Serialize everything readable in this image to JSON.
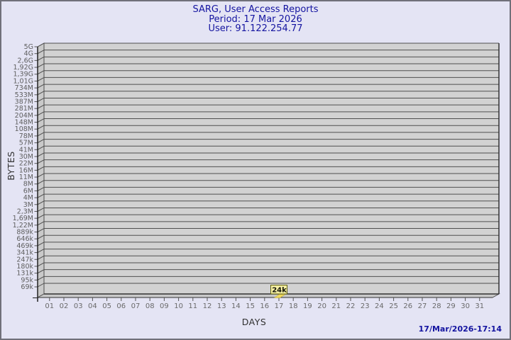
{
  "header": {
    "title": "SARG, User Access Reports",
    "period": "Period: 17 Mar 2026",
    "user": "User: 91.122.254.77"
  },
  "footer": {
    "timestamp": "17/Mar/2026-17:14"
  },
  "colors": {
    "page_background": "#e4e4f4",
    "page_border": "#70707a",
    "title_text": "#1414a0",
    "plot_background": "#d2d2d2",
    "wall_fill": "#c9c9c9",
    "gridline": "#4f4f4f",
    "edge": "#323232",
    "tick_label": "#5e5e5e",
    "bar_fill": "#eed95e",
    "bar_edge": "#b0992f",
    "tooltip_fill": "#f5efa2",
    "tooltip_border": "#5f5f10"
  },
  "chart_data": {
    "type": "bar",
    "title": "SARG, User Access Reports",
    "subtitle": "Period: 17 Mar 2026",
    "user_line": "User: 91.122.254.77",
    "xlabel": "DAYS",
    "ylabel": "BYTES",
    "grid": "horizontal",
    "legend": "none",
    "y_axis_style": "logarithmic-like SARG bytes scale, top 5G, bottom 69k",
    "y_tick_labels": [
      "5G",
      "4G",
      "2,6G",
      "1,92G",
      "1,39G",
      "1,01G",
      "734M",
      "533M",
      "387M",
      "281M",
      "204M",
      "148M",
      "108M",
      "78M",
      "57M",
      "41M",
      "30M",
      "22M",
      "16M",
      "11M",
      "8M",
      "6M",
      "4M",
      "3M",
      "2,3M",
      "1,69M",
      "1,22M",
      "889k",
      "646k",
      "469k",
      "341k",
      "247k",
      "180k",
      "131k",
      "95k",
      "69k"
    ],
    "x_categories": [
      "01",
      "02",
      "03",
      "04",
      "05",
      "06",
      "07",
      "08",
      "09",
      "10",
      "11",
      "12",
      "13",
      "14",
      "15",
      "16",
      "17",
      "18",
      "19",
      "20",
      "21",
      "22",
      "23",
      "24",
      "25",
      "26",
      "27",
      "28",
      "29",
      "30",
      "31"
    ],
    "values": [
      0,
      0,
      0,
      0,
      0,
      0,
      0,
      0,
      0,
      0,
      0,
      0,
      0,
      0,
      0,
      0,
      24000,
      0,
      0,
      0,
      0,
      0,
      0,
      0,
      0,
      0,
      0,
      0,
      0,
      0,
      0
    ],
    "annotations": [
      {
        "day": "17",
        "text": "24k",
        "value_bytes": 24000
      }
    ]
  }
}
